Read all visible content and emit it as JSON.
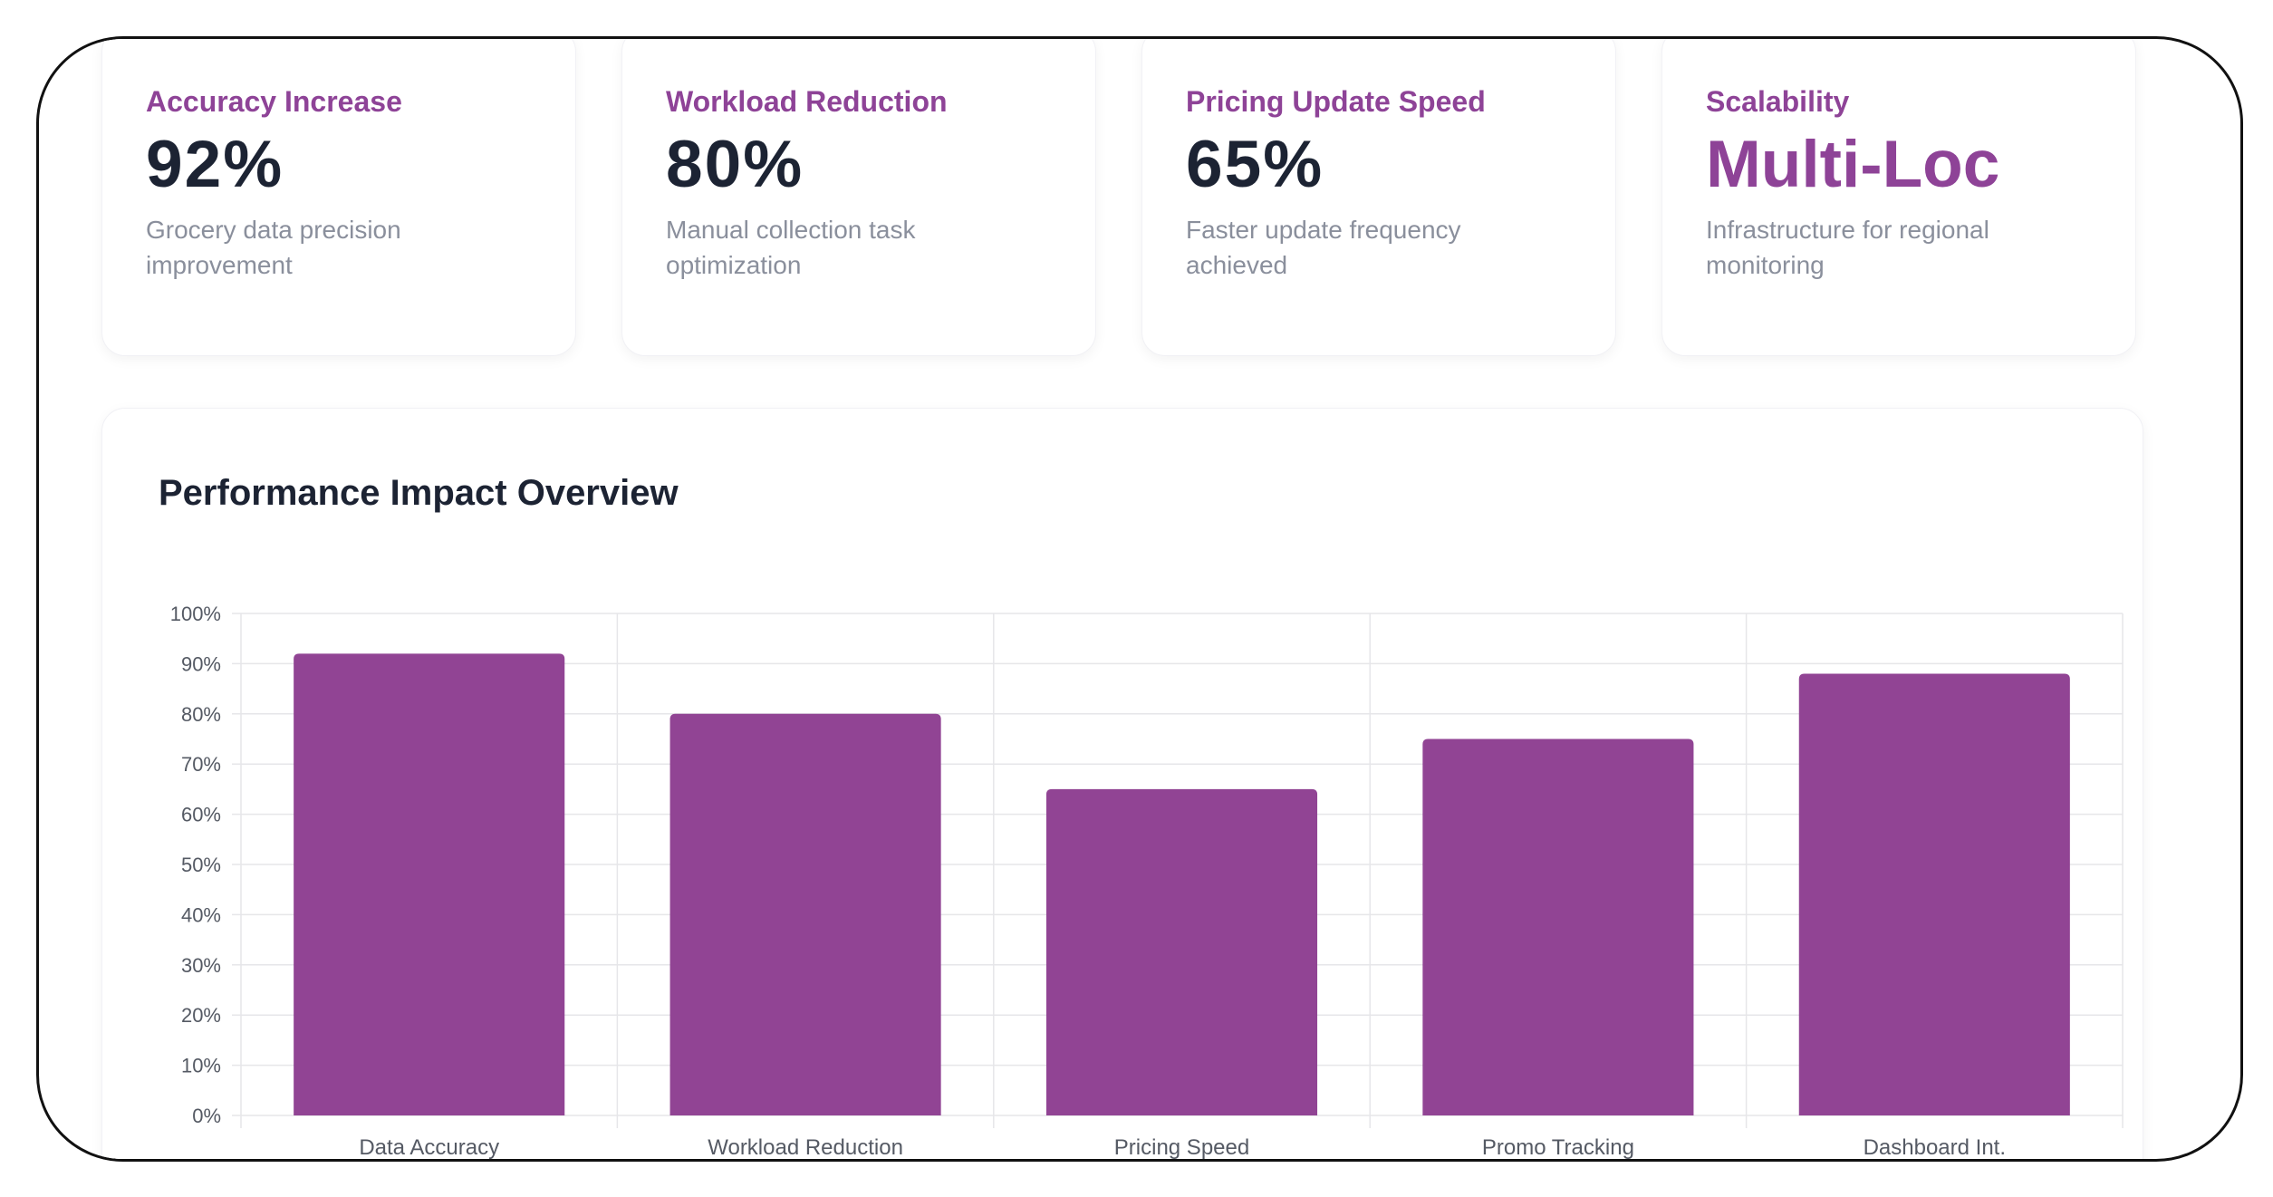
{
  "cards": [
    {
      "title": "Accuracy Increase",
      "value": "92%",
      "desc": [
        "Grocery data precision",
        "improvement"
      ]
    },
    {
      "title": "Workload Reduction",
      "value": "80%",
      "desc": [
        "Manual collection task",
        "optimization"
      ]
    },
    {
      "title": "Pricing Update Speed",
      "value": "65%",
      "desc": [
        "Faster update frequency",
        "achieved"
      ]
    },
    {
      "title": "Scalability",
      "value": "Multi-Loc",
      "desc": [
        "Infrastructure for regional",
        "monitoring"
      ]
    }
  ],
  "colors": {
    "accent": "#8e4397",
    "bar": "#914494",
    "text_dark": "#1c2333",
    "text_muted": "#8a8f9c",
    "grid": "#e6e6e9"
  },
  "chart_data": {
    "type": "bar",
    "title": "Performance Impact Overview",
    "categories": [
      "Data Accuracy",
      "Workload Reduction",
      "Pricing Speed",
      "Promo Tracking",
      "Dashboard Int."
    ],
    "values": [
      92,
      80,
      65,
      75,
      88
    ],
    "ylim": [
      0,
      100
    ],
    "yticks": [
      0,
      10,
      20,
      30,
      40,
      50,
      60,
      70,
      80,
      90,
      100
    ],
    "ytick_labels": [
      "0%",
      "10%",
      "20%",
      "30%",
      "40%",
      "50%",
      "60%",
      "70%",
      "80%",
      "90%",
      "100%"
    ],
    "xlabel": "",
    "ylabel": "",
    "grid": true
  }
}
